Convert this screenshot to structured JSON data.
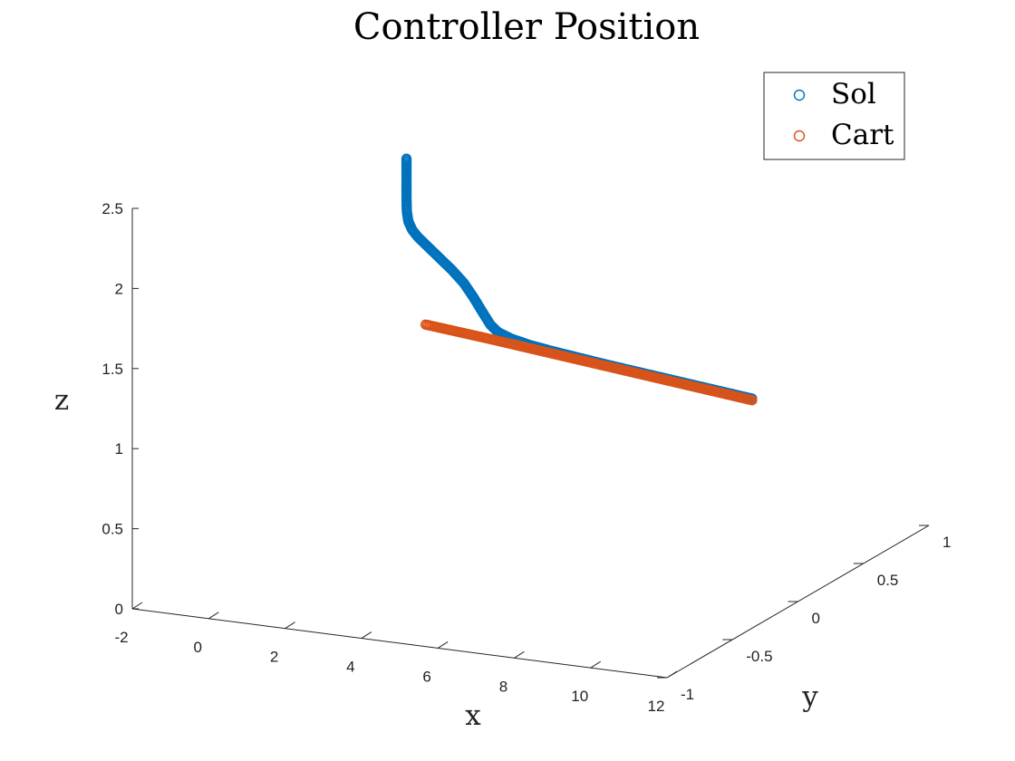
{
  "chart_data": {
    "type": "scatter3d",
    "title": "Controller Position",
    "xlabel": "x",
    "ylabel": "y",
    "zlabel": "z",
    "xlim": [
      -2,
      12
    ],
    "ylim": [
      -1,
      1
    ],
    "zlim": [
      0,
      2.5
    ],
    "x_ticks": [
      "-2",
      "0",
      "2",
      "4",
      "6",
      "8",
      "10",
      "12"
    ],
    "y_ticks": [
      "-1",
      "-0.5",
      "0",
      "0.5",
      "1"
    ],
    "z_ticks": [
      "0",
      "0.5",
      "1",
      "1.5",
      "2",
      "2.5"
    ],
    "grid": false,
    "legend_position": "top-right",
    "series": [
      {
        "name": "Sol",
        "color": "#0072BD",
        "marker": "circle-open",
        "points": [
          [
            1.75,
            0,
            2.45
          ],
          [
            1.75,
            0,
            2.4
          ],
          [
            1.75,
            0,
            2.3
          ],
          [
            1.75,
            0,
            2.2
          ],
          [
            1.76,
            0,
            2.12
          ],
          [
            1.8,
            0,
            2.06
          ],
          [
            1.9,
            0,
            2.01
          ],
          [
            2.05,
            0,
            1.97
          ],
          [
            2.3,
            0,
            1.92
          ],
          [
            2.6,
            0,
            1.86
          ],
          [
            2.95,
            0,
            1.79
          ],
          [
            3.25,
            0,
            1.72
          ],
          [
            3.5,
            0,
            1.64
          ],
          [
            3.75,
            0,
            1.55
          ],
          [
            3.95,
            0,
            1.48
          ],
          [
            4.15,
            0,
            1.44
          ],
          [
            4.5,
            0,
            1.41
          ],
          [
            5,
            0,
            1.385
          ],
          [
            5.6,
            0,
            1.365
          ],
          [
            6.3,
            0,
            1.345
          ],
          [
            7,
            0,
            1.325
          ],
          [
            7.8,
            0,
            1.305
          ],
          [
            8.6,
            0,
            1.285
          ],
          [
            9.4,
            0,
            1.265
          ],
          [
            10.2,
            0,
            1.245
          ],
          [
            10.8,
            0,
            1.23
          ]
        ]
      },
      {
        "name": "Cart",
        "color": "#D95319",
        "marker": "circle-open",
        "points": [
          [
            2.25,
            0,
            1.43
          ],
          [
            4,
            0,
            1.39
          ],
          [
            6,
            0,
            1.34
          ],
          [
            8,
            0,
            1.29
          ],
          [
            10,
            0,
            1.24
          ],
          [
            10.8,
            0,
            1.22
          ]
        ]
      }
    ]
  }
}
